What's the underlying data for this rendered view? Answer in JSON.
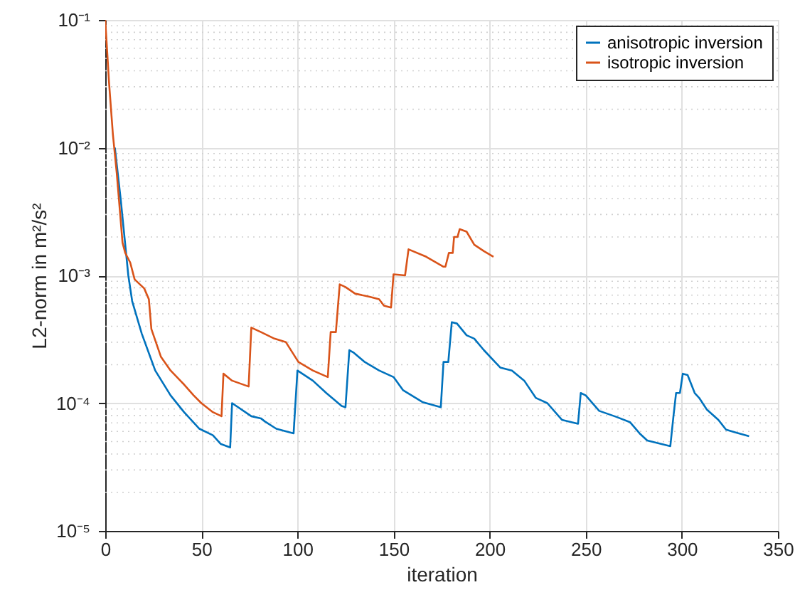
{
  "chart_data": {
    "type": "line",
    "xlabel": "iteration",
    "ylabel": "L2-norm in m²/s²",
    "log": "y",
    "grid": true,
    "legend": "top right",
    "line_style": "solid",
    "marker": "none",
    "xlim": [
      0,
      350
    ],
    "xticks": [
      0,
      50,
      100,
      150,
      200,
      250,
      300,
      350
    ],
    "ylim": [
      1e-05,
      0.1
    ],
    "yticks": [
      {
        "value": 1e-05,
        "label": "10⁻⁵"
      },
      {
        "value": 0.0001,
        "label": "10⁻⁴"
      },
      {
        "value": 0.001,
        "label": "10⁻³"
      },
      {
        "value": 0.01,
        "label": "10⁻²"
      },
      {
        "value": 0.1,
        "label": "10⁻¹"
      }
    ],
    "series": [
      {
        "name": "anisotropic inversion",
        "color": "#0072bd",
        "x": [
          5,
          8,
          12,
          14,
          19,
          26,
          34,
          41,
          49,
          56,
          60,
          65,
          66,
          76,
          81,
          83,
          89,
          98,
          100,
          108,
          115,
          123,
          125,
          127,
          129,
          135,
          142.5,
          150,
          155,
          165,
          174.6,
          176,
          178.5,
          180.3,
          183,
          188,
          192,
          197,
          205.5,
          211.6,
          218,
          224,
          230,
          237.6,
          246,
          247.4,
          250,
          257,
          266,
          273,
          278,
          282,
          294,
          295.6,
          297,
          299,
          300.5,
          303,
          306.7,
          309,
          313,
          319,
          323,
          328,
          335
        ],
        "values": [
          0.01,
          0.004,
          0.001,
          0.00063,
          0.00035,
          0.00018,
          0.000115,
          8.5e-05,
          6.3e-05,
          5.6e-05,
          4.8e-05,
          4.5e-05,
          0.0001,
          7.9e-05,
          7.6e-05,
          7.2e-05,
          6.3e-05,
          5.8e-05,
          0.00018,
          0.00015,
          0.00012,
          9.5e-05,
          9.3e-05,
          0.00026,
          0.00025,
          0.00021,
          0.00018,
          0.00016,
          0.000126,
          0.000102,
          9.3e-05,
          0.00021,
          0.00021,
          0.00043,
          0.00042,
          0.00034,
          0.00032,
          0.00026,
          0.00019,
          0.00018,
          0.00015,
          0.00011,
          0.0001,
          7.4e-05,
          6.9e-05,
          0.00012,
          0.000115,
          8.7e-05,
          7.8e-05,
          7.1e-05,
          5.8e-05,
          5.1e-05,
          4.6e-05,
          7.8e-05,
          0.00012,
          0.00012,
          0.00017,
          0.000166,
          0.00012,
          0.00011,
          8.9e-05,
          7.4e-05,
          6.2e-05,
          5.9e-05,
          5.5e-05
        ]
      },
      {
        "name": "isotropic inversion",
        "color": "#d95319",
        "x": [
          0,
          2,
          4,
          6,
          9,
          10.4,
          13,
          15.3,
          20.3,
          22.7,
          24,
          29,
          34,
          41,
          46,
          50,
          56,
          60.5,
          61.5,
          66,
          74.6,
          76,
          81,
          88,
          94,
          100.5,
          108,
          115.8,
          117.3,
          120,
          122,
          125,
          130,
          137.5,
          142.5,
          145,
          148.7,
          150,
          156,
          157.8,
          167,
          176,
          177,
          178.8,
          180.8,
          181.5,
          183.3,
          184.4,
          188,
          192,
          197,
          202
        ],
        "values": [
          0.1,
          0.032,
          0.0126,
          0.0063,
          0.0018,
          0.0015,
          0.00126,
          0.00093,
          0.00079,
          0.00065,
          0.00038,
          0.00023,
          0.00018,
          0.00014,
          0.000115,
          0.0001,
          8.5e-05,
          7.9e-05,
          0.00017,
          0.00015,
          0.000135,
          0.00039,
          0.00036,
          0.00032,
          0.0003,
          0.00021,
          0.00018,
          0.00016,
          0.00036,
          0.00036,
          0.00085,
          0.00081,
          0.00072,
          0.00068,
          0.00065,
          0.00058,
          0.00056,
          0.00102,
          0.001,
          0.0016,
          0.0014,
          0.00117,
          0.00117,
          0.0015,
          0.0015,
          0.002,
          0.002,
          0.0023,
          0.0022,
          0.00174,
          0.00155,
          0.0014
        ]
      }
    ]
  }
}
